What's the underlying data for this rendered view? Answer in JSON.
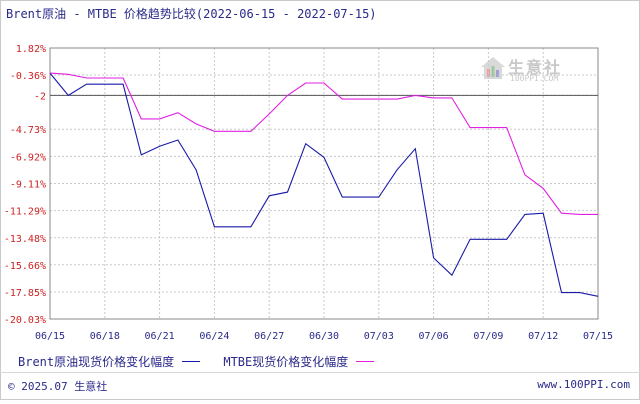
{
  "title": "Brent原油 - MTBE 价格趋势比较(2022-06-15 - 2022-07-15)",
  "footer": {
    "copyright": "© 2025.07 生意社",
    "site": "www.100PPI.com"
  },
  "watermark": {
    "name": "生意社",
    "site": "100PPI.COM"
  },
  "colors": {
    "brent": "#1a1aa8",
    "mtbe": "#e020e0",
    "grid": "#c8c8c8",
    "axis": "#888888",
    "baseline": "#555555"
  },
  "chart_data": {
    "type": "line",
    "title": "Brent原油 - MTBE 价格趋势比较(2022-06-15 - 2022-07-15)",
    "xlabel": "",
    "ylabel": "",
    "ylim": [
      -20.03,
      1.82
    ],
    "y_ticks": [
      1.82,
      -0.36,
      -2,
      -4.73,
      -6.92,
      -9.11,
      -11.29,
      -13.48,
      -15.66,
      -17.85,
      -20.03
    ],
    "y_tick_labels": [
      "1.82%",
      "-0.36%",
      "-2",
      "-4.73%",
      "-6.92%",
      "-9.11%",
      "-11.29%",
      "-13.48%",
      "-15.66%",
      "-17.85%",
      "-20.03%"
    ],
    "x_tick_labels": [
      "06/15",
      "06/18",
      "06/21",
      "06/24",
      "06/27",
      "06/30",
      "07/03",
      "07/06",
      "07/09",
      "07/12",
      "07/15"
    ],
    "baseline": -2,
    "x_range": [
      0,
      30
    ],
    "grid": true,
    "legend_position": "bottom-left",
    "series": [
      {
        "name": "Brent原油现货价格变化幅度",
        "x": [
          0,
          1,
          2,
          3,
          4,
          5,
          6,
          7,
          8,
          9,
          10,
          11,
          12,
          13,
          14,
          15,
          16,
          17,
          18,
          19,
          20,
          21,
          22,
          23,
          24,
          25,
          26,
          27,
          28,
          29,
          30
        ],
        "values": [
          -0.2,
          -2.0,
          -1.1,
          -1.1,
          -1.1,
          -6.8,
          -6.1,
          -5.6,
          -8.0,
          -12.6,
          -12.6,
          -12.6,
          -10.1,
          -9.8,
          -5.9,
          -7.0,
          -10.2,
          -10.2,
          -10.2,
          -8.0,
          -6.3,
          -15.1,
          -16.5,
          -13.6,
          -13.6,
          -13.6,
          -11.6,
          -11.5,
          -17.9,
          -17.9,
          -18.2
        ]
      },
      {
        "name": "MTBE现货价格变化幅度",
        "x": [
          0,
          1,
          2,
          3,
          4,
          5,
          6,
          7,
          8,
          9,
          10,
          11,
          12,
          13,
          14,
          15,
          16,
          17,
          18,
          19,
          20,
          21,
          22,
          23,
          24,
          25,
          26,
          27,
          28,
          29,
          30
        ],
        "values": [
          -0.2,
          -0.3,
          -0.6,
          -0.6,
          -0.6,
          -3.9,
          -3.9,
          -3.4,
          -4.3,
          -4.9,
          -4.9,
          -4.9,
          -3.5,
          -2.0,
          -1.0,
          -1.0,
          -2.3,
          -2.3,
          -2.3,
          -2.3,
          -2.0,
          -2.2,
          -2.2,
          -4.6,
          -4.6,
          -4.6,
          -8.4,
          -9.5,
          -11.5,
          -11.6,
          -11.6
        ]
      }
    ]
  }
}
